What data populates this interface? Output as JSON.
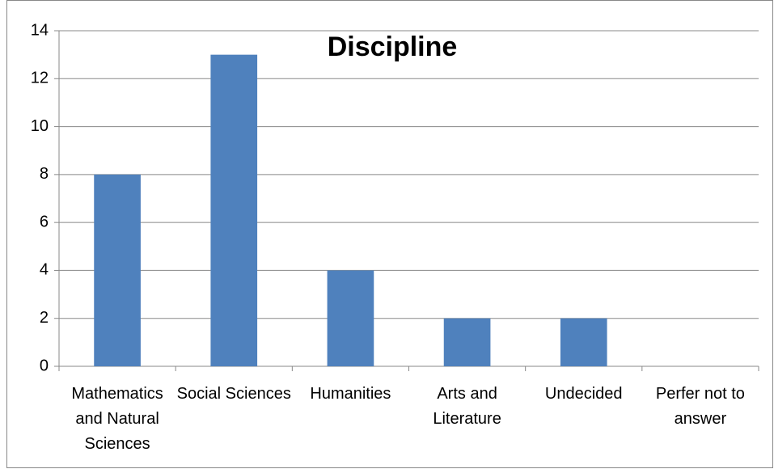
{
  "chart_data": {
    "type": "bar",
    "title": "Discipline",
    "categories": [
      "Mathematics and Natural Sciences",
      "Social Sciences",
      "Humanities",
      "Arts and Literature",
      "Undecided",
      "Perfer not to answer"
    ],
    "values": [
      8,
      13,
      4,
      2,
      2,
      0
    ],
    "color": "#4f81bd",
    "ylim": [
      0,
      14
    ],
    "yticks": [
      0,
      2,
      4,
      6,
      8,
      10,
      12,
      14
    ],
    "grid": true
  }
}
